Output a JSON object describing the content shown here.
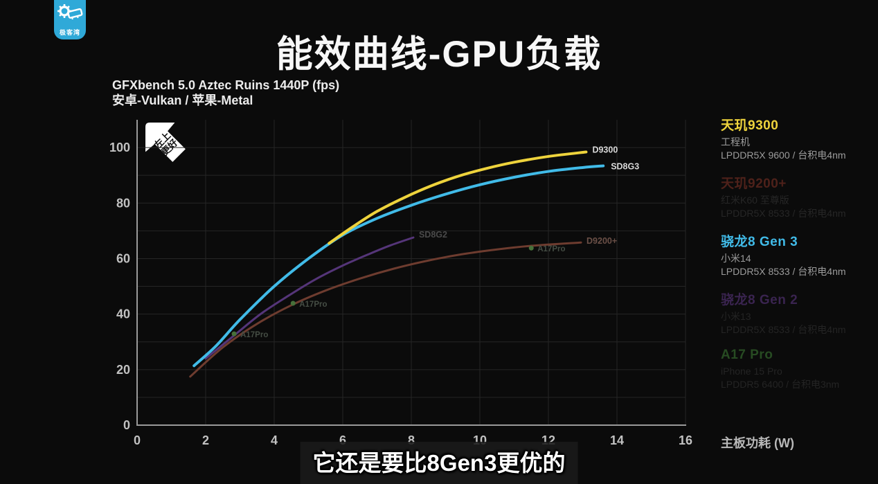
{
  "logo": {
    "name": "极客湾"
  },
  "header": {
    "title": "能效曲线-GPU负载"
  },
  "chart_subtitle": {
    "line1": "GFXbench 5.0 Aztec Ruins 1440P (fps)",
    "line2": "安卓-Vulkan / 苹果-Metal"
  },
  "direction_badge": {
    "line1": "左上",
    "line2": "更好"
  },
  "caption": {
    "text": "它还是要比8Gen3更优的"
  },
  "chart_data": {
    "type": "line",
    "title": "GFXbench 5.0 Aztec Ruins 1440P (fps)",
    "xlabel": "主板功耗 (W)",
    "ylabel": "",
    "xlim": [
      0,
      16
    ],
    "ylim": [
      0,
      110
    ],
    "xticks": [
      0,
      2,
      4,
      6,
      8,
      10,
      12,
      14,
      16
    ],
    "yticks": [
      0,
      20,
      40,
      60,
      80,
      100
    ],
    "grid": true,
    "grid_minor_y_step": 10,
    "legend_position": "right",
    "series": [
      {
        "name": "D9200+",
        "chip": "天玑9200+",
        "style": "line",
        "color": "#6e3c2f",
        "stroke_width": 3,
        "label_color": "#6b5047",
        "label_offset": [
          8,
          -2
        ],
        "points": [
          [
            1.55,
            17.5
          ],
          [
            2.5,
            28.0
          ],
          [
            3.5,
            36.5
          ],
          [
            4.5,
            43.2
          ],
          [
            5.5,
            48.5
          ],
          [
            6.5,
            52.8
          ],
          [
            7.5,
            56.4
          ],
          [
            8.5,
            59.3
          ],
          [
            9.5,
            61.6
          ],
          [
            10.5,
            63.3
          ],
          [
            11.5,
            64.6
          ],
          [
            12.95,
            65.8
          ]
        ]
      },
      {
        "name": "SD8G2",
        "chip": "骁龙8 Gen 2",
        "style": "line",
        "color": "#553579",
        "stroke_width": 3,
        "label_color": "#4a4a4a",
        "label_offset": [
          8,
          -4
        ],
        "points": [
          [
            2.0,
            24.0
          ],
          [
            2.8,
            32.0
          ],
          [
            3.6,
            40.0
          ],
          [
            4.4,
            46.5
          ],
          [
            5.2,
            52.5
          ],
          [
            6.0,
            57.5
          ],
          [
            6.8,
            61.8
          ],
          [
            7.4,
            64.8
          ],
          [
            8.06,
            67.6
          ]
        ]
      },
      {
        "name": "A17Pro",
        "chip": "A17 Pro",
        "style": "scatter",
        "color": "#47703a",
        "stroke_width": 3,
        "label_color": "#454d44",
        "label_offset": [
          9,
          1
        ],
        "points": [
          [
            2.83,
            32.9
          ],
          [
            4.55,
            43.9
          ],
          [
            11.5,
            63.8
          ]
        ]
      },
      {
        "name": "SD8G3",
        "chip": "骁龙8 Gen 3",
        "style": "line",
        "color": "#41bbe8",
        "stroke_width": 4,
        "label_color": "#d9d9d9",
        "label_offset": [
          11,
          1
        ],
        "points": [
          [
            1.66,
            21.4
          ],
          [
            2.3,
            28.5
          ],
          [
            3.0,
            38.0
          ],
          [
            4.0,
            50.0
          ],
          [
            5.0,
            60.0
          ],
          [
            6.0,
            68.5
          ],
          [
            7.0,
            74.5
          ],
          [
            8.0,
            79.2
          ],
          [
            9.0,
            83.2
          ],
          [
            10.0,
            86.6
          ],
          [
            11.0,
            89.3
          ],
          [
            12.0,
            91.4
          ],
          [
            13.0,
            92.8
          ],
          [
            13.6,
            93.4
          ]
        ]
      },
      {
        "name": "D9300",
        "chip": "天玑9300",
        "style": "line",
        "color": "#eed33c",
        "stroke_width": 4,
        "label_color": "#d9d9d9",
        "label_offset": [
          9,
          -3
        ],
        "points": [
          [
            5.6,
            65.5
          ],
          [
            6.3,
            71.5
          ],
          [
            7.0,
            77.0
          ],
          [
            7.8,
            82.0
          ],
          [
            8.6,
            86.3
          ],
          [
            9.4,
            89.8
          ],
          [
            10.2,
            92.5
          ],
          [
            11.0,
            94.7
          ],
          [
            12.0,
            96.8
          ],
          [
            13.1,
            98.4
          ]
        ]
      }
    ]
  },
  "legend": {
    "entries": [
      {
        "title": "天玑9300",
        "title_color": "#eed33c",
        "sub_color": "#9c9c9c",
        "lines": [
          "工程机",
          "LPDDR5X 9600 / 台积电4nm"
        ]
      },
      {
        "title": "天玑9200+",
        "title_color": "#4e211a",
        "sub_color": "#262626",
        "lines": [
          "红米K60 至尊版",
          "LPDDR5X 8533 / 台积电4nm"
        ]
      },
      {
        "title": "骁龙8 Gen 3",
        "title_color": "#41bbe8",
        "sub_color": "#9c9c9c",
        "lines": [
          "小米14",
          "LPDDR5X 8533 / 台积电4nm"
        ]
      },
      {
        "title": "骁龙8 Gen 2",
        "title_color": "#3a2450",
        "sub_color": "#242424",
        "lines": [
          "小米13",
          "LPDDR5X 8533 / 台积电4nm"
        ]
      },
      {
        "title": "A17 Pro",
        "title_color": "#274b22",
        "sub_color": "#242424",
        "lines": [
          "iPhone 15 Pro",
          "LPDDR5 6400 / 台积电3nm"
        ]
      }
    ]
  }
}
